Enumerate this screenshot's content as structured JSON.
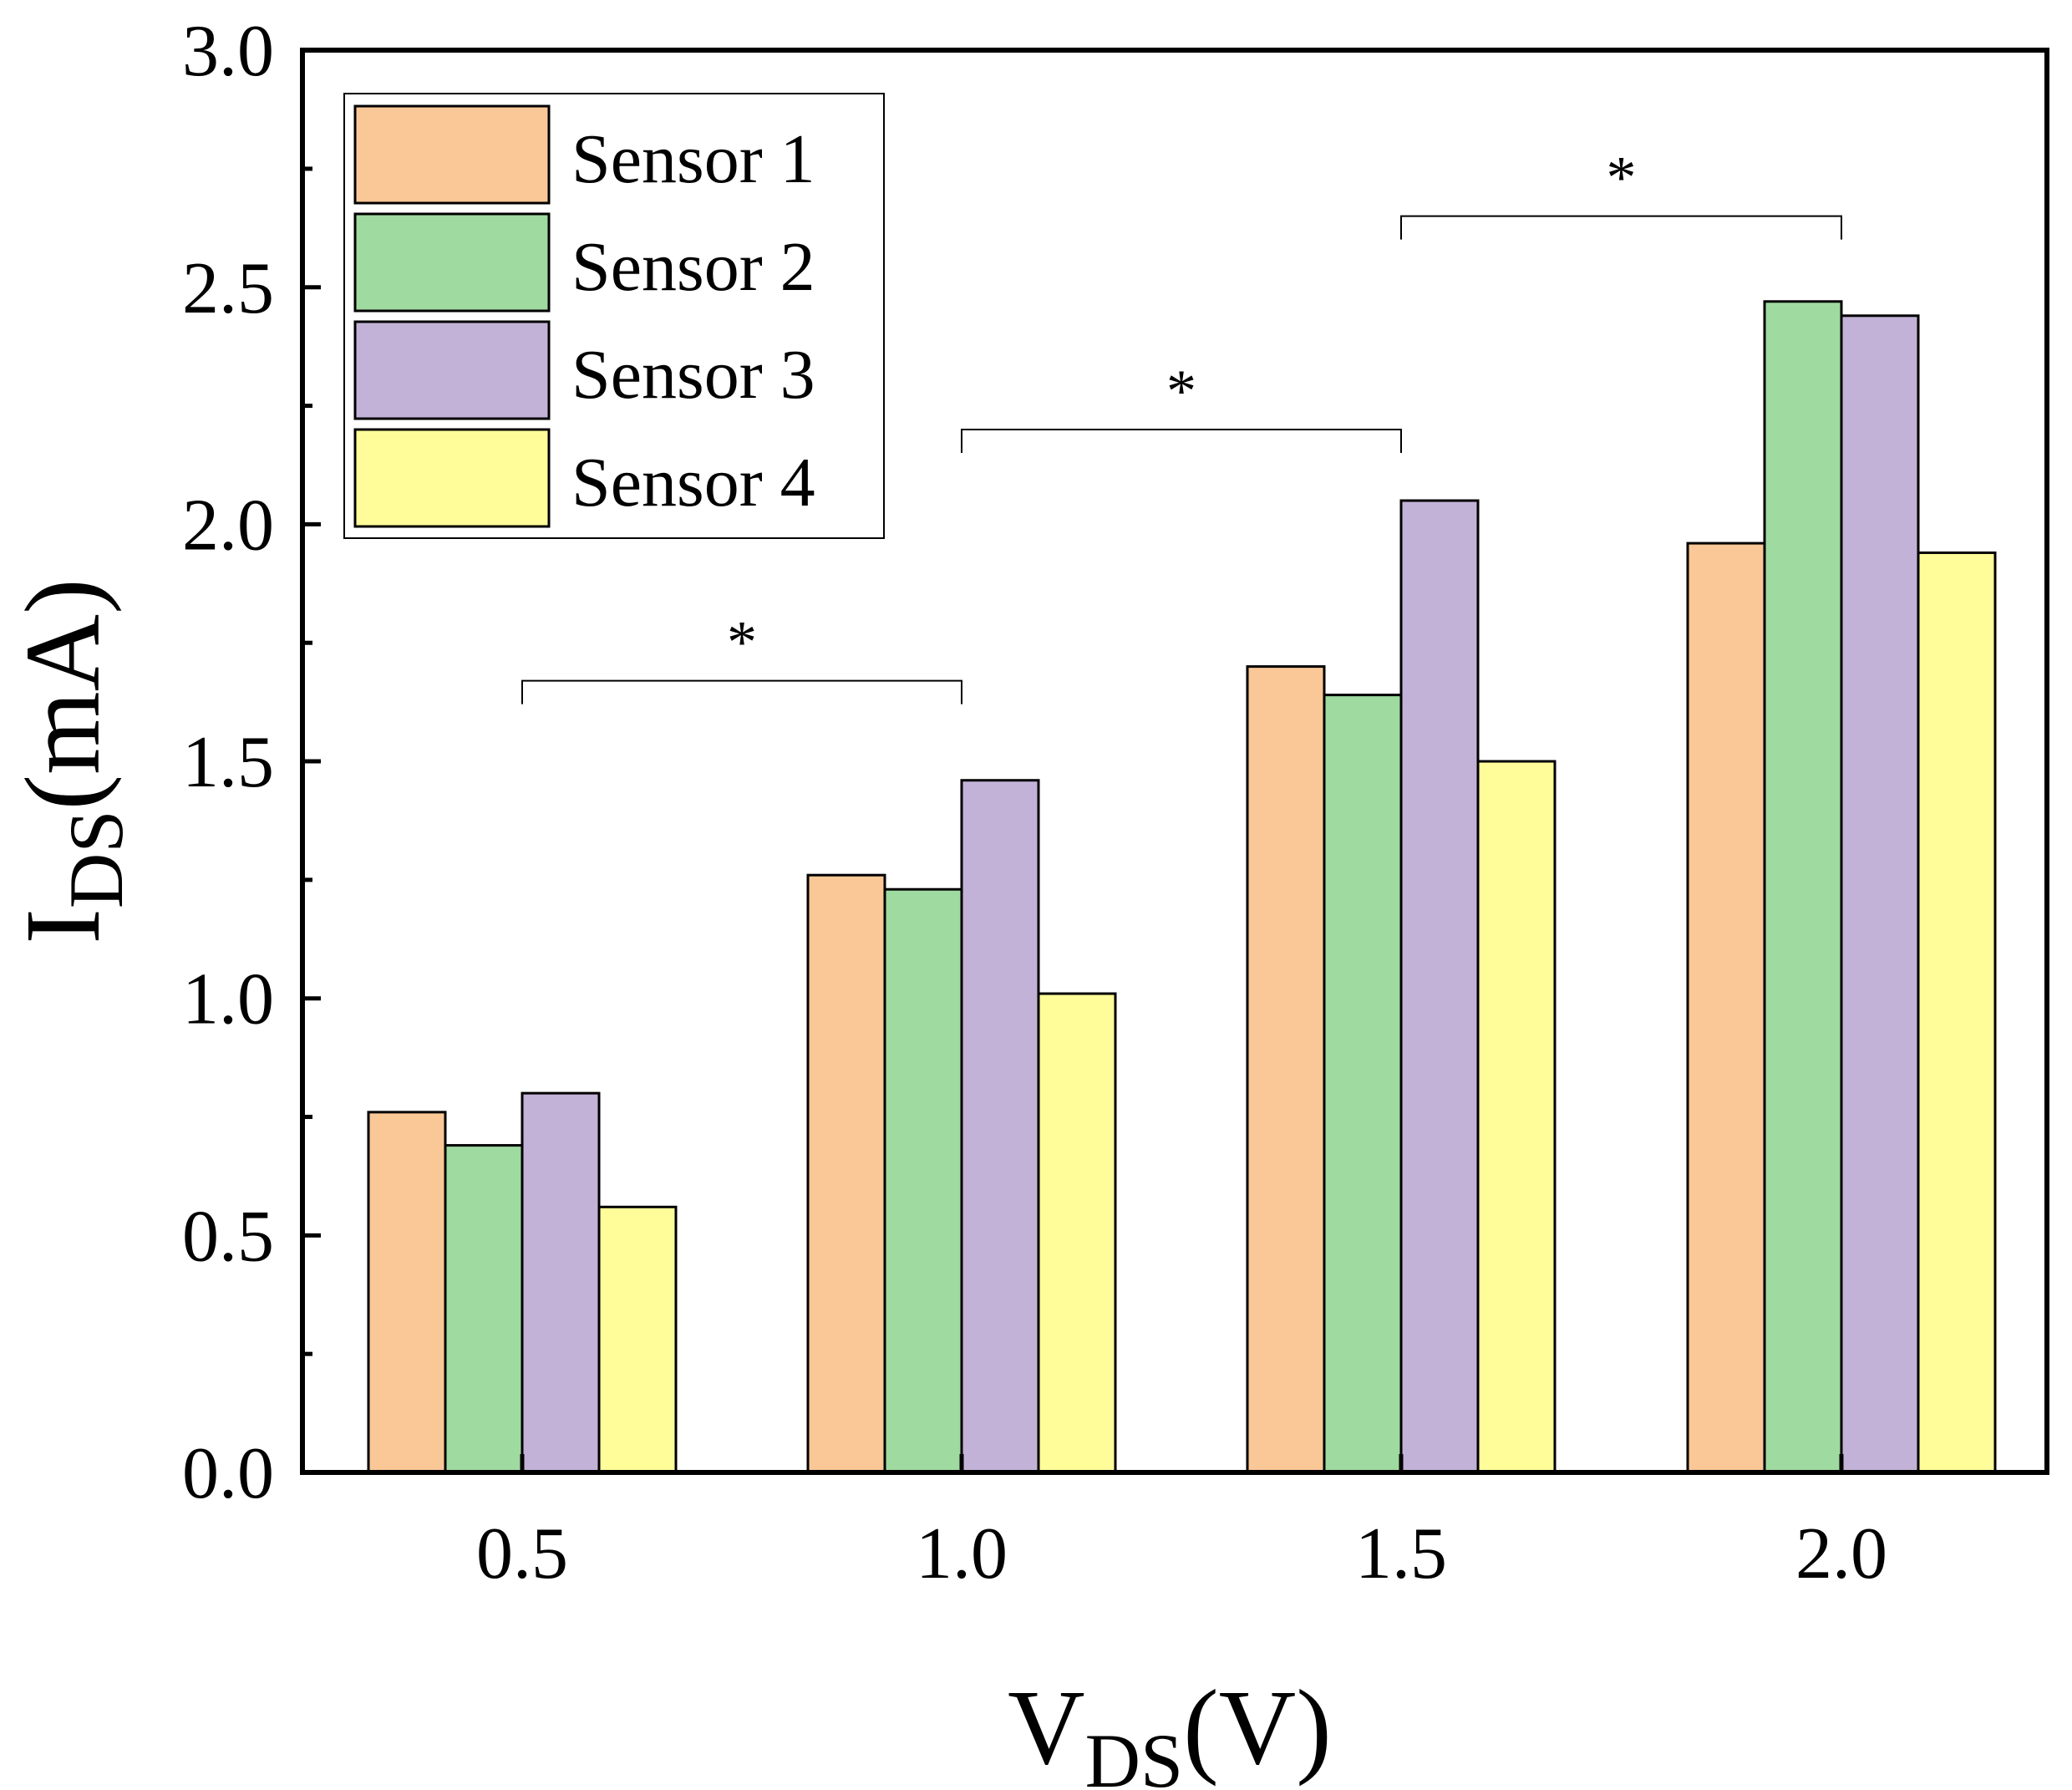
{
  "chart_data": {
    "type": "bar",
    "x_axis": {
      "label_main": "V",
      "label_sub": "DS",
      "label_unit": "(V)",
      "categories": [
        "0.5",
        "1.0",
        "1.5",
        "2.0"
      ]
    },
    "y_axis": {
      "label_main": "I",
      "label_sub": "DS",
      "label_unit": "(mA)",
      "ylim": [
        0,
        3.0
      ],
      "ticks": [
        "0.0",
        "0.5",
        "1.0",
        "1.5",
        "2.0",
        "2.5",
        "3.0"
      ],
      "tick_values": [
        0,
        0.5,
        1.0,
        1.5,
        2.0,
        2.5,
        3.0
      ]
    },
    "series": [
      {
        "name": "Sensor 1",
        "color": "#FAC796",
        "values": [
          0.76,
          1.26,
          1.7,
          1.96
        ]
      },
      {
        "name": "Sensor 2",
        "color": "#9FDAA0",
        "values": [
          0.69,
          1.23,
          1.64,
          2.47
        ]
      },
      {
        "name": "Sensor 3",
        "color": "#C3B2D7",
        "values": [
          0.8,
          1.46,
          2.05,
          2.44
        ]
      },
      {
        "name": "Sensor 4",
        "color": "#FFFD9A",
        "values": [
          0.56,
          1.01,
          1.5,
          1.94
        ]
      }
    ],
    "legend": {
      "position": "top-left"
    },
    "grid": false,
    "significance": [
      {
        "from": "0.5",
        "to": "1.0",
        "level": 1.67,
        "label": "*"
      },
      {
        "from": "1.0",
        "to": "1.5",
        "level": 2.2,
        "label": "*"
      },
      {
        "from": "1.5",
        "to": "2.0",
        "level": 2.65,
        "label": "*"
      }
    ]
  }
}
